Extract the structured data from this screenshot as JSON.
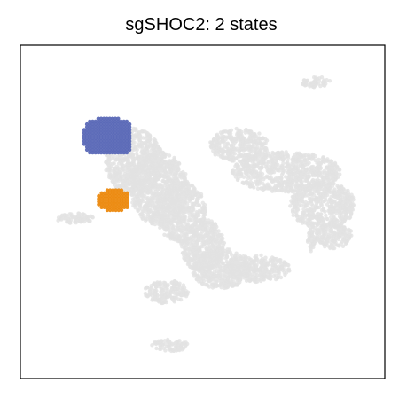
{
  "chart_data": {
    "type": "scatter",
    "title": "sgSHOC2: 2 states",
    "xlabel": "",
    "ylabel": "",
    "grid": false,
    "legend": "none",
    "axes_ticks": false,
    "xlim": [
      0,
      100
    ],
    "ylim": [
      0,
      100
    ],
    "series": [
      {
        "role": "background",
        "color": "#e2e2e2",
        "clusters": [
          {
            "shape": "ellipse",
            "cx": 31,
            "cy": 65,
            "rx": 8,
            "ry": 10
          },
          {
            "shape": "ellipse",
            "cx": 38,
            "cy": 57,
            "rx": 8,
            "ry": 11
          },
          {
            "shape": "ellipse",
            "cx": 44,
            "cy": 50,
            "rx": 7,
            "ry": 9
          },
          {
            "shape": "ellipse",
            "cx": 50,
            "cy": 40,
            "rx": 6,
            "ry": 8
          },
          {
            "shape": "ellipse",
            "cx": 55,
            "cy": 33,
            "rx": 8,
            "ry": 6
          },
          {
            "shape": "ellipse",
            "cx": 65,
            "cy": 33,
            "rx": 9,
            "ry": 4
          },
          {
            "shape": "ellipse",
            "cx": 60,
            "cy": 70,
            "rx": 8,
            "ry": 5
          },
          {
            "shape": "ellipse",
            "cx": 73,
            "cy": 62,
            "rx": 15,
            "ry": 6
          },
          {
            "shape": "ellipse",
            "cx": 83,
            "cy": 52,
            "rx": 9,
            "ry": 7
          },
          {
            "shape": "ellipse",
            "cx": 86,
            "cy": 43,
            "rx": 5,
            "ry": 4
          },
          {
            "shape": "ellipse",
            "cx": 40,
            "cy": 26,
            "rx": 6,
            "ry": 3.5
          },
          {
            "shape": "ellipse",
            "cx": 81,
            "cy": 89,
            "rx": 4,
            "ry": 1.6
          },
          {
            "shape": "ellipse",
            "cx": 15,
            "cy": 48,
            "rx": 5,
            "ry": 1.6
          },
          {
            "shape": "ellipse",
            "cx": 80,
            "cy": 42,
            "rx": 1.2,
            "ry": 4
          },
          {
            "shape": "ellipse",
            "cx": 41,
            "cy": 10,
            "rx": 5,
            "ry": 1.8
          }
        ]
      },
      {
        "role": "state-1",
        "color": "#5b69b7",
        "region": {
          "x": [
            17.5,
            30.5
          ],
          "y": [
            67,
            78
          ]
        }
      },
      {
        "role": "state-2",
        "color": "#ec8a10",
        "region": {
          "x": [
            21.5,
            30
          ],
          "y": [
            50.5,
            56.5
          ]
        }
      }
    ]
  }
}
